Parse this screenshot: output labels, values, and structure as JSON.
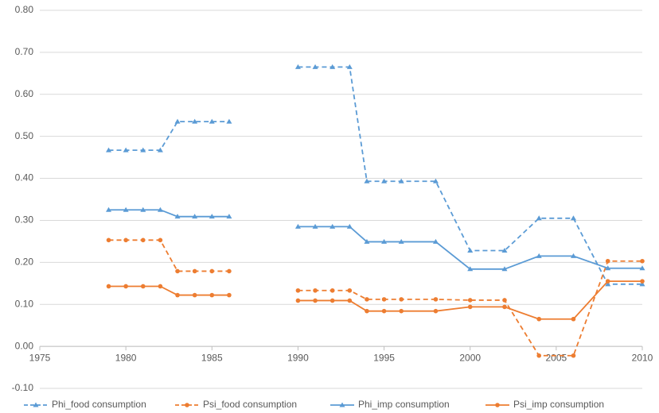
{
  "chart_data": {
    "type": "line",
    "x": [
      1979,
      1980,
      1981,
      1982,
      1983,
      1984,
      1985,
      1986,
      1987,
      1990,
      1991,
      1992,
      1993,
      1994,
      1995,
      1996,
      1998,
      2000,
      2002,
      2004,
      2006,
      2008,
      2010
    ],
    "series": [
      {
        "name": "Phi_food consumption",
        "color": "#5b9bd5",
        "dash": true,
        "marker": "triangle",
        "values": [
          0.467,
          0.467,
          0.467,
          0.467,
          0.535,
          0.535,
          0.535,
          0.535,
          null,
          0.665,
          0.665,
          0.665,
          0.665,
          0.393,
          0.393,
          0.393,
          0.393,
          0.228,
          0.228,
          0.305,
          0.305,
          0.148,
          0.148
        ]
      },
      {
        "name": "Psi_food consumption",
        "color": "#ed7d31",
        "dash": true,
        "marker": "circle",
        "values": [
          0.253,
          0.253,
          0.253,
          0.253,
          0.179,
          0.179,
          0.179,
          0.179,
          null,
          0.133,
          0.133,
          0.133,
          0.133,
          0.112,
          0.112,
          0.112,
          0.112,
          0.11,
          0.11,
          -0.022,
          -0.022,
          0.203,
          0.203
        ]
      },
      {
        "name": "Phi_imp consumption",
        "color": "#5b9bd5",
        "dash": false,
        "marker": "triangle",
        "values": [
          0.325,
          0.325,
          0.325,
          0.325,
          0.309,
          0.309,
          0.309,
          0.309,
          null,
          0.285,
          0.285,
          0.285,
          0.285,
          0.249,
          0.249,
          0.249,
          0.249,
          0.184,
          0.184,
          0.215,
          0.215,
          0.186,
          0.186
        ]
      },
      {
        "name": "Psi_imp consumption",
        "color": "#ed7d31",
        "dash": false,
        "marker": "circle",
        "values": [
          0.143,
          0.143,
          0.143,
          0.143,
          0.122,
          0.122,
          0.122,
          0.122,
          null,
          0.109,
          0.109,
          0.109,
          0.109,
          0.084,
          0.084,
          0.084,
          0.084,
          0.094,
          0.094,
          0.065,
          0.065,
          0.155,
          0.155
        ]
      }
    ],
    "xlim": [
      1975,
      2010
    ],
    "xticks": [
      1975,
      1980,
      1985,
      1990,
      1995,
      2000,
      2005,
      2010
    ],
    "ylim": [
      -0.1,
      0.8
    ],
    "yticks": [
      {
        "value": -0.1,
        "label": "-0.10"
      },
      {
        "value": 0,
        "label": "0.00"
      },
      {
        "value": 0.1,
        "label": "0.10"
      },
      {
        "value": 0.2,
        "label": "0.20"
      },
      {
        "value": 0.3,
        "label": "0.30"
      },
      {
        "value": 0.4,
        "label": "0.40"
      },
      {
        "value": 0.5,
        "label": "0.50"
      },
      {
        "value": 0.6,
        "label": "0.60"
      },
      {
        "value": 0.7,
        "label": "0.70"
      },
      {
        "value": 0.8,
        "label": "0.80"
      }
    ],
    "grid": true,
    "legend": "bottom"
  }
}
